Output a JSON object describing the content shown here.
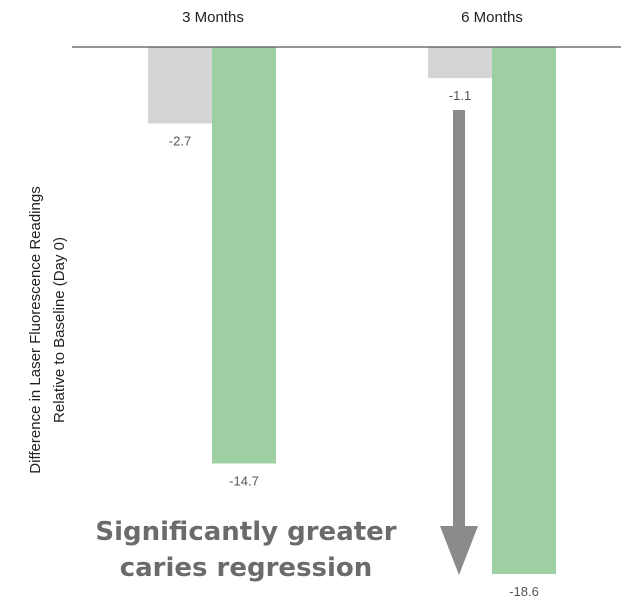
{
  "chart_data": {
    "type": "bar",
    "orientation": "vertical-downward",
    "categories": [
      "3 Months",
      "6 Months"
    ],
    "series": [
      {
        "color": "#d4d4d4",
        "values": [
          -2.7,
          -1.1
        ],
        "labels": [
          "-2.7",
          "-1.1"
        ]
      },
      {
        "color": "#9ecfa3",
        "values": [
          -14.7,
          -18.6
        ],
        "labels": [
          "-14.7",
          "-18.6"
        ]
      }
    ],
    "title": "",
    "xlabel": "",
    "ylabel": "Difference in Laser Fluorescence Readings\nRelative to Baseline (Day 0)",
    "ylim": [
      -18.6,
      0
    ],
    "x_axis_position": "top",
    "grid": false,
    "legend": "none",
    "annotation": {
      "text": "Significantly greater\ncaries regression",
      "arrow": "down",
      "arrow_color": "#8a8a8a",
      "text_color": "#6b6b6b"
    },
    "axis_color": "#555555"
  }
}
